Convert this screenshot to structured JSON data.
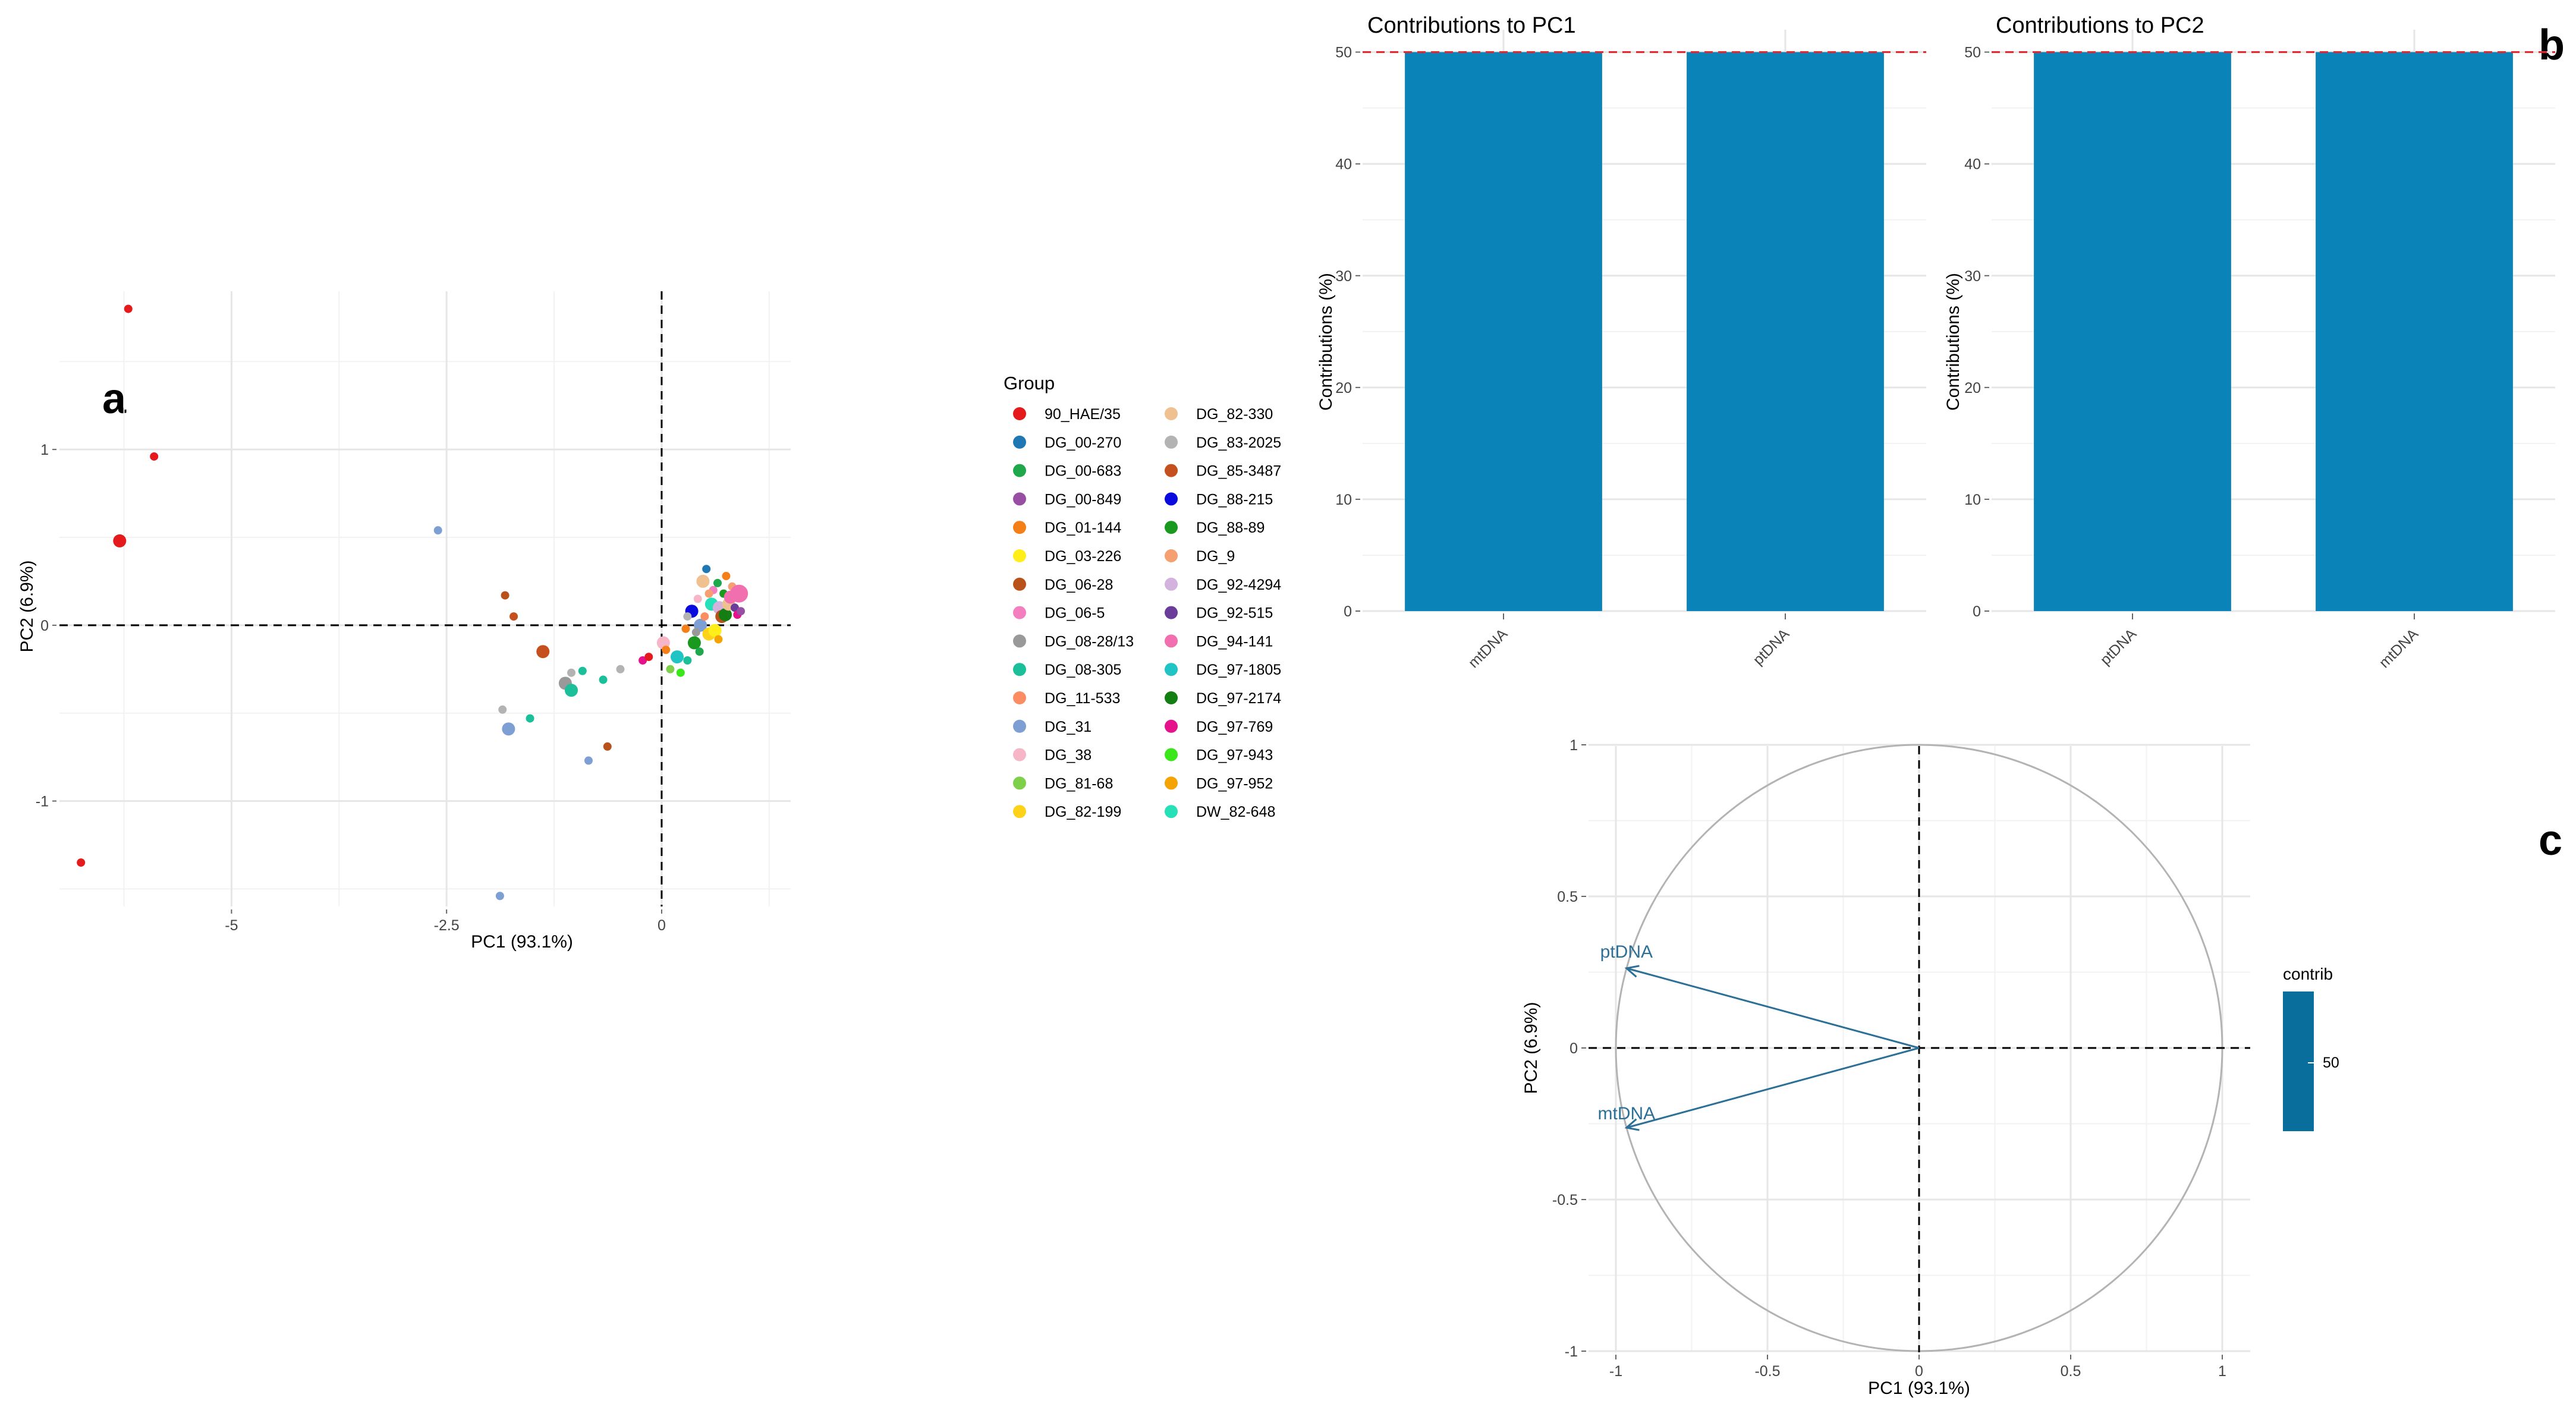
{
  "panel_labels": {
    "a": "a",
    "b": "b",
    "c": "c"
  },
  "chart_data": [
    {
      "id": "a",
      "type": "scatter",
      "title": "",
      "xlabel": "PC1 (93.1%)",
      "ylabel": "PC2 (6.9%)",
      "xlim": [
        -7.0,
        1.5
      ],
      "ylim": [
        -1.6,
        1.9
      ],
      "xticks": [
        -5,
        -2.5,
        0
      ],
      "xtick_labels": [
        "-5",
        "-2.5",
        "0"
      ],
      "yticks": [
        -1,
        0,
        1
      ],
      "ytick_labels": [
        "-1",
        "0",
        "1"
      ],
      "reference_lines": {
        "x": 0,
        "y": 0,
        "style": "dashed"
      },
      "legend": {
        "title": "Group",
        "position": "right",
        "entries": [
          {
            "label": "90_HAE/35",
            "color": "#e41a1c"
          },
          {
            "label": "DG_00-270",
            "color": "#1f78b4"
          },
          {
            "label": "DG_00-683",
            "color": "#1fa84b"
          },
          {
            "label": "DG_00-849",
            "color": "#984ea3"
          },
          {
            "label": "DG_01-144",
            "color": "#f57f17"
          },
          {
            "label": "DG_03-226",
            "color": "#ffee1a"
          },
          {
            "label": "DG_06-28",
            "color": "#b8521a"
          },
          {
            "label": "DG_06-5",
            "color": "#f37fbf"
          },
          {
            "label": "DG_08-28/13",
            "color": "#999999"
          },
          {
            "label": "DG_08-305",
            "color": "#1bbf9a"
          },
          {
            "label": "DG_11-533",
            "color": "#fc8d62"
          },
          {
            "label": "DG_31",
            "color": "#7d9fd3"
          },
          {
            "label": "DG_38",
            "color": "#f7b6c8"
          },
          {
            "label": "DG_81-68",
            "color": "#7ecf4a"
          },
          {
            "label": "DG_82-199",
            "color": "#ffd21a"
          },
          {
            "label": "DG_82-330",
            "color": "#efc090"
          },
          {
            "label": "DG_83-2025",
            "color": "#b3b3b3"
          },
          {
            "label": "DG_85-3487",
            "color": "#c6501d"
          },
          {
            "label": "DG_88-215",
            "color": "#0a0adf"
          },
          {
            "label": "DG_88-89",
            "color": "#199a1e"
          },
          {
            "label": "DG_9",
            "color": "#f6a072"
          },
          {
            "label": "DG_92-4294",
            "color": "#d3b2dd"
          },
          {
            "label": "DG_92-515",
            "color": "#6a3d9a"
          },
          {
            "label": "DG_94-141",
            "color": "#f26faf"
          },
          {
            "label": "DG_97-1805",
            "color": "#21c4c4"
          },
          {
            "label": "DG_97-2174",
            "color": "#137f13"
          },
          {
            "label": "DG_97-769",
            "color": "#e6128c"
          },
          {
            "label": "DG_97-943",
            "color": "#3be61a"
          },
          {
            "label": "DG_97-952",
            "color": "#f4a300"
          },
          {
            "label": "DW_82-648",
            "color": "#26e0b8"
          }
        ]
      },
      "points": [
        {
          "x": -6.2,
          "y": 1.8,
          "g": 0,
          "s": 1
        },
        {
          "x": -5.9,
          "y": 0.96,
          "g": 0,
          "s": 1
        },
        {
          "x": -6.3,
          "y": 0.48,
          "g": 0,
          "s": 2
        },
        {
          "x": -6.75,
          "y": -1.35,
          "g": 0,
          "s": 1
        },
        {
          "x": -2.6,
          "y": 0.54,
          "g": 11,
          "s": 1
        },
        {
          "x": -1.82,
          "y": 0.17,
          "g": 6,
          "s": 1
        },
        {
          "x": -1.72,
          "y": 0.05,
          "g": 17,
          "s": 1
        },
        {
          "x": -1.38,
          "y": -0.15,
          "g": 17,
          "s": 2
        },
        {
          "x": -1.12,
          "y": -0.33,
          "g": 8,
          "s": 2
        },
        {
          "x": -1.05,
          "y": -0.27,
          "g": 16,
          "s": 1
        },
        {
          "x": -1.05,
          "y": -0.37,
          "g": 9,
          "s": 2
        },
        {
          "x": -0.92,
          "y": -0.26,
          "g": 9,
          "s": 1
        },
        {
          "x": -0.68,
          "y": -0.31,
          "g": 9,
          "s": 1
        },
        {
          "x": -0.48,
          "y": -0.25,
          "g": 16,
          "s": 1
        },
        {
          "x": -1.85,
          "y": -0.48,
          "g": 16,
          "s": 1
        },
        {
          "x": -1.78,
          "y": -0.59,
          "g": 11,
          "s": 2
        },
        {
          "x": -1.53,
          "y": -0.53,
          "g": 9,
          "s": 1
        },
        {
          "x": -0.63,
          "y": -0.69,
          "g": 6,
          "s": 1
        },
        {
          "x": -0.85,
          "y": -0.77,
          "g": 11,
          "s": 1
        },
        {
          "x": -1.88,
          "y": -1.54,
          "g": 11,
          "s": 1
        },
        {
          "x": -0.22,
          "y": -0.2,
          "g": 26,
          "s": 1
        },
        {
          "x": -0.15,
          "y": -0.18,
          "g": 0,
          "s": 1
        },
        {
          "x": 0.02,
          "y": -0.1,
          "g": 12,
          "s": 2
        },
        {
          "x": 0.05,
          "y": -0.14,
          "g": 4,
          "s": 1
        },
        {
          "x": 0.1,
          "y": -0.25,
          "g": 13,
          "s": 1
        },
        {
          "x": 0.18,
          "y": -0.18,
          "g": 24,
          "s": 2
        },
        {
          "x": 0.22,
          "y": -0.27,
          "g": 27,
          "s": 1
        },
        {
          "x": 0.28,
          "y": -0.02,
          "g": 4,
          "s": 1
        },
        {
          "x": 0.3,
          "y": -0.2,
          "g": 9,
          "s": 1
        },
        {
          "x": 0.35,
          "y": 0.08,
          "g": 18,
          "s": 2
        },
        {
          "x": 0.38,
          "y": -0.1,
          "g": 19,
          "s": 2
        },
        {
          "x": 0.42,
          "y": 0.15,
          "g": 12,
          "s": 1
        },
        {
          "x": 0.45,
          "y": 0.0,
          "g": 11,
          "s": 2
        },
        {
          "x": 0.48,
          "y": 0.25,
          "g": 15,
          "s": 2
        },
        {
          "x": 0.52,
          "y": 0.32,
          "g": 1,
          "s": 1
        },
        {
          "x": 0.55,
          "y": -0.05,
          "g": 14,
          "s": 2
        },
        {
          "x": 0.58,
          "y": 0.12,
          "g": 29,
          "s": 2
        },
        {
          "x": 0.6,
          "y": 0.2,
          "g": 7,
          "s": 1
        },
        {
          "x": 0.62,
          "y": -0.03,
          "g": 5,
          "s": 2
        },
        {
          "x": 0.65,
          "y": 0.24,
          "g": 2,
          "s": 1
        },
        {
          "x": 0.67,
          "y": 0.1,
          "g": 21,
          "s": 2
        },
        {
          "x": 0.7,
          "y": 0.05,
          "g": 6,
          "s": 2
        },
        {
          "x": 0.72,
          "y": 0.18,
          "g": 19,
          "s": 1
        },
        {
          "x": 0.74,
          "y": 0.06,
          "g": 25,
          "s": 2
        },
        {
          "x": 0.75,
          "y": 0.28,
          "g": 4,
          "s": 1
        },
        {
          "x": 0.78,
          "y": 0.12,
          "g": 15,
          "s": 2
        },
        {
          "x": 0.8,
          "y": 0.16,
          "g": 23,
          "s": 2
        },
        {
          "x": 0.82,
          "y": 0.22,
          "g": 20,
          "s": 1
        },
        {
          "x": 0.85,
          "y": 0.1,
          "g": 22,
          "s": 1
        },
        {
          "x": 0.88,
          "y": 0.06,
          "g": 26,
          "s": 1
        },
        {
          "x": 0.9,
          "y": 0.18,
          "g": 23,
          "s": 3
        },
        {
          "x": 0.92,
          "y": 0.08,
          "g": 3,
          "s": 1
        },
        {
          "x": 0.3,
          "y": 0.05,
          "g": 16,
          "s": 1
        },
        {
          "x": 0.4,
          "y": -0.04,
          "g": 8,
          "s": 1
        },
        {
          "x": 0.5,
          "y": 0.05,
          "g": 10,
          "s": 1
        },
        {
          "x": 0.55,
          "y": 0.18,
          "g": 20,
          "s": 1
        },
        {
          "x": 0.44,
          "y": -0.15,
          "g": 2,
          "s": 1
        },
        {
          "x": 0.66,
          "y": -0.08,
          "g": 28,
          "s": 1
        }
      ]
    },
    {
      "id": "b1",
      "type": "bar",
      "title": "Contributions to PC1",
      "xlabel": "",
      "ylabel": "Contributions (%)",
      "categories": [
        "mtDNA",
        "ptDNA"
      ],
      "values": [
        50,
        50
      ],
      "ylim": [
        0,
        52
      ],
      "yticks": [
        0,
        10,
        20,
        30,
        40,
        50
      ],
      "ytick_labels": [
        "0",
        "10",
        "20",
        "30",
        "40",
        "50"
      ],
      "reference_line": {
        "y": 50,
        "color": "#e8222a",
        "style": "dashed"
      },
      "bar_color": "#0a84b8"
    },
    {
      "id": "b2",
      "type": "bar",
      "title": "Contributions to PC2",
      "xlabel": "",
      "ylabel": "Contributions (%)",
      "categories": [
        "ptDNA",
        "mtDNA"
      ],
      "values": [
        50,
        50
      ],
      "ylim": [
        0,
        52
      ],
      "yticks": [
        0,
        10,
        20,
        30,
        40,
        50
      ],
      "ytick_labels": [
        "0",
        "10",
        "20",
        "30",
        "40",
        "50"
      ],
      "reference_line": {
        "y": 50,
        "color": "#e8222a",
        "style": "dashed"
      },
      "bar_color": "#0a84b8"
    },
    {
      "id": "c",
      "type": "scatter",
      "subtype": "variable-correlation-circle",
      "title": "",
      "xlabel": "PC1 (93.1%)",
      "ylabel": "PC2 (6.9%)",
      "xlim": [
        -1.1,
        1.1
      ],
      "ylim": [
        -1.05,
        1.05
      ],
      "xticks": [
        -1,
        -0.5,
        0,
        0.5,
        1
      ],
      "xtick_labels": [
        "-1",
        "-0.5",
        "0",
        "0.5",
        "1"
      ],
      "yticks": [
        -1,
        -0.5,
        0,
        0.5,
        1
      ],
      "ytick_labels": [
        "-1",
        "-0.5",
        "0",
        "0.5",
        "1"
      ],
      "circle_radius": 1,
      "vectors": [
        {
          "name": "ptDNA",
          "x": -0.965,
          "y": 0.263,
          "contrib": 50
        },
        {
          "name": "mtDNA",
          "x": -0.965,
          "y": -0.263,
          "contrib": 50
        }
      ],
      "arrow_color": "#2c6f97",
      "colorbar": {
        "title": "contrib",
        "tick": "50",
        "color": "#0a6e9c"
      }
    }
  ]
}
